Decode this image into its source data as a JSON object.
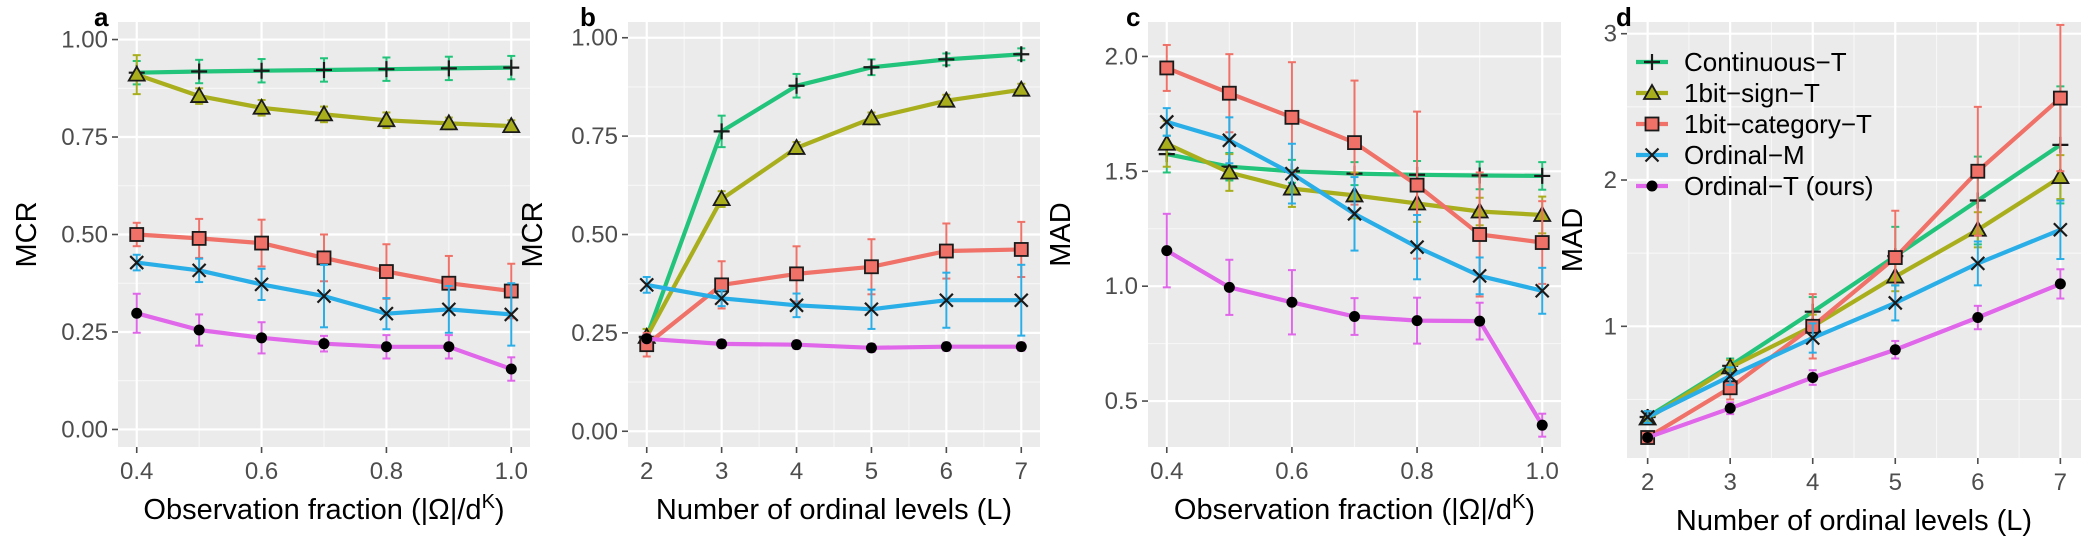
{
  "series_styles": [
    {
      "name": "Continuous−T",
      "color": "#22c37b",
      "marker": "plus"
    },
    {
      "name": "1bit−sign−T",
      "color": "#a8ae1c",
      "marker": "triangle"
    },
    {
      "name": "1bit−category−T",
      "color": "#ef7168",
      "marker": "square"
    },
    {
      "name": "Ordinal−M",
      "color": "#2aaee8",
      "marker": "x"
    },
    {
      "name": "Ordinal−T (ours)",
      "color": "#e066ea",
      "marker": "dot"
    }
  ],
  "legend": {
    "placement": "inside-top-left of panel d"
  },
  "chart_data": [
    {
      "panel": "a",
      "type": "line",
      "xlabel": "Observation fraction (|Ω|/dᴷ)",
      "ylabel": "MCR",
      "x": [
        0.4,
        0.5,
        0.6,
        0.7,
        0.8,
        0.9,
        1.0
      ],
      "xticks": [
        0.4,
        0.6,
        0.8,
        1.0
      ],
      "xtick_labels": [
        "0.4",
        "0.6",
        "0.8",
        "1.0"
      ],
      "xlim": [
        0.37,
        1.03
      ],
      "yticks": [
        0,
        0.25,
        0.5,
        0.75,
        1.0
      ],
      "ytick_labels": [
        "0.00",
        "0.25",
        "0.50",
        "0.75",
        "1.00"
      ],
      "ylim": [
        -0.045,
        1.045
      ],
      "grid": true,
      "series": [
        {
          "values": [
            0.915,
            0.918,
            0.92,
            0.922,
            0.924,
            0.926,
            0.928
          ],
          "err": [
            0.03,
            0.03,
            0.03,
            0.03,
            0.03,
            0.03,
            0.03
          ]
        },
        {
          "values": [
            0.91,
            0.855,
            0.825,
            0.808,
            0.793,
            0.785,
            0.778
          ],
          "err": [
            0.05,
            0.02,
            0.02,
            0.02,
            0.02,
            0.015,
            0.015
          ]
        },
        {
          "values": [
            0.5,
            0.49,
            0.478,
            0.44,
            0.405,
            0.375,
            0.355
          ],
          "err": [
            0.03,
            0.05,
            0.06,
            0.06,
            0.07,
            0.07,
            0.07
          ]
        },
        {
          "values": [
            0.428,
            0.408,
            0.372,
            0.342,
            0.297,
            0.308,
            0.295
          ],
          "err": [
            0.02,
            0.03,
            0.04,
            0.08,
            0.04,
            0.06,
            0.08
          ]
        },
        {
          "values": [
            0.298,
            0.255,
            0.235,
            0.22,
            0.212,
            0.212,
            0.155
          ],
          "err": [
            0.05,
            0.04,
            0.04,
            0.02,
            0.03,
            0.03,
            0.03
          ]
        }
      ]
    },
    {
      "panel": "b",
      "type": "line",
      "xlabel": "Number of ordinal levels (L)",
      "ylabel": "MCR",
      "x": [
        2,
        3,
        4,
        5,
        6,
        7
      ],
      "xticks": [
        2,
        3,
        4,
        5,
        6,
        7
      ],
      "xtick_labels": [
        "2",
        "3",
        "4",
        "5",
        "6",
        "7"
      ],
      "xlim": [
        1.75,
        7.25
      ],
      "yticks": [
        0,
        0.25,
        0.5,
        0.75,
        1.0
      ],
      "ytick_labels": [
        "0.00",
        "0.25",
        "0.50",
        "0.75",
        "1.00"
      ],
      "ylim": [
        -0.04,
        1.04
      ],
      "grid": true,
      "series": [
        {
          "values": [
            0.24,
            0.762,
            0.878,
            0.925,
            0.945,
            0.958
          ],
          "err": [
            0.02,
            0.04,
            0.03,
            0.02,
            0.015,
            0.015
          ]
        },
        {
          "values": [
            0.24,
            0.59,
            0.72,
            0.795,
            0.84,
            0.868
          ],
          "err": [
            0.02,
            0.02,
            0.015,
            0.015,
            0.015,
            0.015
          ]
        },
        {
          "values": [
            0.22,
            0.372,
            0.4,
            0.418,
            0.458,
            0.462
          ],
          "err": [
            0.03,
            0.06,
            0.07,
            0.07,
            0.07,
            0.07
          ]
        },
        {
          "values": [
            0.372,
            0.338,
            0.32,
            0.31,
            0.333,
            0.333
          ],
          "err": [
            0.02,
            0.02,
            0.03,
            0.05,
            0.07,
            0.09
          ]
        },
        {
          "values": [
            0.235,
            0.222,
            0.22,
            0.212,
            0.215,
            0.215
          ],
          "err": [
            0.01,
            0.01,
            0.01,
            0.01,
            0.01,
            0.01
          ]
        }
      ]
    },
    {
      "panel": "c",
      "type": "line",
      "xlabel": "Observation fraction (|Ω|/dᴷ)",
      "ylabel": "MAD",
      "x": [
        0.4,
        0.5,
        0.6,
        0.7,
        0.8,
        0.9,
        1.0
      ],
      "xticks": [
        0.4,
        0.6,
        0.8,
        1.0
      ],
      "xtick_labels": [
        "0.4",
        "0.6",
        "0.8",
        "1.0"
      ],
      "xlim": [
        0.37,
        1.03
      ],
      "yticks": [
        0.5,
        1.0,
        1.5,
        2.0
      ],
      "ytick_labels": [
        "0.5",
        "1.0",
        "1.5",
        "2.0"
      ],
      "ylim": [
        0.3,
        2.15
      ],
      "grid": true,
      "series": [
        {
          "values": [
            1.575,
            1.52,
            1.5,
            1.49,
            1.485,
            1.482,
            1.48
          ],
          "err": [
            0.08,
            0.06,
            0.05,
            0.05,
            0.06,
            0.06,
            0.06
          ]
        },
        {
          "values": [
            1.62,
            1.495,
            1.425,
            1.395,
            1.36,
            1.325,
            1.31
          ],
          "err": [
            0.1,
            0.08,
            0.08,
            0.1,
            0.08,
            0.06,
            0.08
          ]
        },
        {
          "values": [
            1.95,
            1.84,
            1.735,
            1.625,
            1.44,
            1.225,
            1.19
          ],
          "err": [
            0.1,
            0.17,
            0.24,
            0.27,
            0.32,
            0.27,
            0.18
          ]
        },
        {
          "values": [
            1.715,
            1.635,
            1.49,
            1.315,
            1.17,
            1.045,
            0.98
          ],
          "err": [
            0.06,
            0.1,
            0.13,
            0.16,
            0.14,
            0.08,
            0.1
          ]
        },
        {
          "values": [
            1.155,
            0.995,
            0.93,
            0.868,
            0.85,
            0.848,
            0.395
          ],
          "err": [
            0.16,
            0.12,
            0.14,
            0.08,
            0.1,
            0.08,
            0.05
          ]
        }
      ]
    },
    {
      "panel": "d",
      "type": "line",
      "xlabel": "Number of ordinal levels (L)",
      "ylabel": "MAD",
      "x": [
        2,
        3,
        4,
        5,
        6,
        7
      ],
      "xticks": [
        2,
        3,
        4,
        5,
        6,
        7
      ],
      "xtick_labels": [
        "2",
        "3",
        "4",
        "5",
        "6",
        "7"
      ],
      "xlim": [
        1.75,
        7.25
      ],
      "yticks": [
        1,
        2,
        3
      ],
      "ytick_labels": [
        "1",
        "2",
        "3"
      ],
      "ylim": [
        0.1,
        3.08
      ],
      "grid": true,
      "series": [
        {
          "values": [
            0.38,
            0.73,
            1.1,
            1.48,
            1.86,
            2.24
          ],
          "err": [
            0.04,
            0.05,
            0.1,
            0.2,
            0.3,
            0.4
          ]
        },
        {
          "values": [
            0.37,
            0.72,
            1.0,
            1.34,
            1.66,
            2.02
          ],
          "err": [
            0.03,
            0.05,
            0.08,
            0.1,
            0.12,
            0.15
          ]
        },
        {
          "values": [
            0.24,
            0.58,
            1.0,
            1.47,
            2.06,
            2.56
          ],
          "err": [
            0.04,
            0.08,
            0.22,
            0.32,
            0.44,
            0.5
          ]
        },
        {
          "values": [
            0.38,
            0.66,
            0.92,
            1.16,
            1.43,
            1.66
          ],
          "err": [
            0.04,
            0.06,
            0.1,
            0.12,
            0.15,
            0.2
          ]
        },
        {
          "values": [
            0.24,
            0.44,
            0.65,
            0.84,
            1.06,
            1.29
          ],
          "err": [
            0.02,
            0.04,
            0.05,
            0.06,
            0.08,
            0.1
          ]
        }
      ]
    }
  ],
  "panel_letters": [
    "a",
    "b",
    "c",
    "d"
  ]
}
